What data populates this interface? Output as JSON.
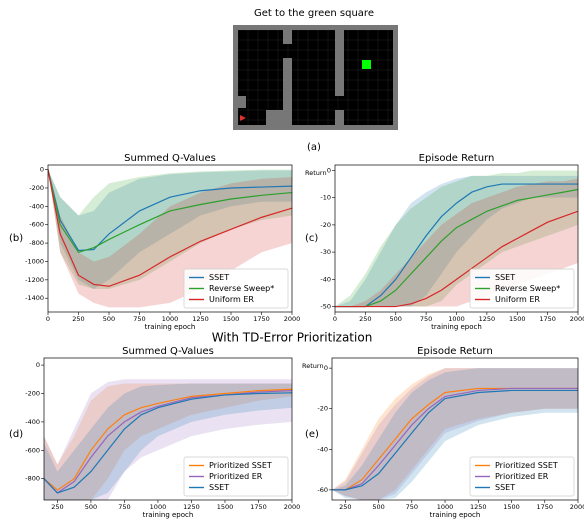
{
  "figure": {
    "title": "Get to the green square",
    "section_title": "With TD-Error Prioritization",
    "panel_labels": [
      "(a)",
      "(b)",
      "(c)",
      "(d)",
      "(e)"
    ]
  },
  "chart_data": [
    {
      "type": "line",
      "title": "Summed Q-Values",
      "x_label": "training epoch",
      "legend": "lower right",
      "x": [
        0,
        100,
        250,
        375,
        500,
        750,
        1000,
        1250,
        1500,
        1750,
        2000
      ],
      "xlim": [
        0,
        2000
      ],
      "xticks": [
        0,
        250,
        500,
        750,
        1000,
        1250,
        1500,
        1750,
        2000
      ],
      "ylim": [
        -1550,
        50
      ],
      "yticks": [
        0,
        -200,
        -400,
        -600,
        -800,
        -1000,
        -1200,
        -1400
      ],
      "series": [
        {
          "name": "SSET",
          "color": "#1f77b4",
          "values": [
            0,
            -550,
            -880,
            -870,
            -700,
            -450,
            -300,
            -230,
            -200,
            -190,
            -180
          ],
          "upper": [
            0,
            -300,
            -500,
            -450,
            -250,
            -100,
            -50,
            -30,
            -20,
            -10,
            -10
          ],
          "lower": [
            0,
            -800,
            -1200,
            -1300,
            -1200,
            -900,
            -700,
            -500,
            -400,
            -350,
            -350
          ]
        },
        {
          "name": "Reverse Sweep*",
          "color": "#2ca02c",
          "values": [
            0,
            -600,
            -900,
            -850,
            -760,
            -600,
            -450,
            -380,
            -320,
            -280,
            -250
          ],
          "upper": [
            0,
            -300,
            -500,
            -300,
            -150,
            -80,
            -40,
            -20,
            -10,
            0,
            0
          ],
          "lower": [
            0,
            -900,
            -1250,
            -1300,
            -1300,
            -1200,
            -1000,
            -800,
            -650,
            -550,
            -500
          ]
        },
        {
          "name": "Uniform ER",
          "color": "#d62728",
          "values": [
            0,
            -700,
            -1150,
            -1250,
            -1270,
            -1150,
            -950,
            -780,
            -650,
            -520,
            -420
          ],
          "upper": [
            0,
            -500,
            -900,
            -1000,
            -950,
            -700,
            -400,
            -250,
            -150,
            -100,
            -80
          ],
          "lower": [
            0,
            -900,
            -1350,
            -1450,
            -1500,
            -1500,
            -1450,
            -1300,
            -1100,
            -900,
            -800
          ]
        }
      ]
    },
    {
      "type": "line",
      "title": "Episode Return",
      "x_label": "training epoch",
      "y_label": "Return",
      "legend": "lower right",
      "x": [
        0,
        125,
        250,
        375,
        500,
        625,
        750,
        875,
        1000,
        1125,
        1250,
        1375,
        1500,
        1625,
        1750,
        1875,
        2000
      ],
      "xlim": [
        0,
        2000
      ],
      "xticks": [
        0,
        250,
        500,
        750,
        1000,
        1250,
        1500,
        1750,
        2000
      ],
      "ylim": [
        -52,
        2
      ],
      "yticks": [
        0,
        -10,
        -20,
        -30,
        -40,
        -50
      ],
      "series": [
        {
          "name": "SSET",
          "color": "#1f77b4",
          "values": [
            -50,
            -50,
            -50,
            -46,
            -40,
            -32,
            -24,
            -17,
            -12,
            -8,
            -6,
            -5,
            -5,
            -5,
            -5,
            -5,
            -5
          ],
          "upper": [
            -50,
            -48,
            -40,
            -30,
            -20,
            -12,
            -8,
            -5,
            -3,
            -2,
            -2,
            -2,
            -2,
            -2,
            -2,
            -2,
            -2
          ],
          "lower": [
            -50,
            -50,
            -50,
            -50,
            -50,
            -50,
            -46,
            -38,
            -30,
            -24,
            -18,
            -14,
            -12,
            -10,
            -10,
            -10,
            -10
          ]
        },
        {
          "name": "Reverse Sweep*",
          "color": "#2ca02c",
          "values": [
            -50,
            -50,
            -50,
            -48,
            -44,
            -38,
            -32,
            -26,
            -21,
            -18,
            -15,
            -13,
            -11,
            -10,
            -9,
            -8,
            -7
          ],
          "upper": [
            -50,
            -46,
            -38,
            -28,
            -20,
            -14,
            -10,
            -6,
            -4,
            -2,
            -2,
            -1,
            -1,
            0,
            0,
            0,
            0
          ],
          "lower": [
            -50,
            -50,
            -50,
            -50,
            -50,
            -50,
            -50,
            -48,
            -42,
            -38,
            -34,
            -30,
            -28,
            -26,
            -24,
            -22,
            -20
          ]
        },
        {
          "name": "Uniform ER",
          "color": "#d62728",
          "values": [
            -50,
            -50,
            -50,
            -50,
            -50,
            -49,
            -47,
            -44,
            -40,
            -36,
            -32,
            -28,
            -25,
            -22,
            -19,
            -17,
            -15
          ],
          "upper": [
            -50,
            -50,
            -48,
            -44,
            -38,
            -32,
            -26,
            -20,
            -16,
            -12,
            -10,
            -8,
            -6,
            -5,
            -4,
            -4,
            -3
          ],
          "lower": [
            -50,
            -50,
            -50,
            -50,
            -50,
            -50,
            -50,
            -50,
            -50,
            -48,
            -46,
            -44,
            -42,
            -40,
            -38,
            -36,
            -34
          ]
        }
      ]
    },
    {
      "type": "line",
      "title": "Summed Q-Values",
      "x_label": "training epoch",
      "legend": "lower right",
      "x": [
        150,
        250,
        375,
        500,
        625,
        750,
        875,
        1000,
        1250,
        1500,
        1750,
        2000
      ],
      "xlim": [
        150,
        2000
      ],
      "xticks": [
        250,
        500,
        750,
        1000,
        1250,
        1500,
        1750,
        2000
      ],
      "ylim": [
        -950,
        50
      ],
      "yticks": [
        0,
        -200,
        -400,
        -600,
        -800
      ],
      "series": [
        {
          "name": "Prioritized SSET",
          "color": "#ff7f0e",
          "values": [
            -800,
            -880,
            -800,
            -600,
            -450,
            -350,
            -300,
            -270,
            -220,
            -200,
            -180,
            -170
          ],
          "upper": [
            -500,
            -700,
            -500,
            -250,
            -150,
            -130,
            -130,
            -130,
            -130,
            -130,
            -130,
            -130
          ],
          "lower": [
            -950,
            -950,
            -950,
            -950,
            -800,
            -600,
            -500,
            -450,
            -350,
            -300,
            -250,
            -220
          ]
        },
        {
          "name": "Prioritized ER",
          "color": "#9467bd",
          "values": [
            -800,
            -900,
            -820,
            -650,
            -500,
            -400,
            -330,
            -290,
            -230,
            -210,
            -190,
            -180
          ],
          "upper": [
            -500,
            -700,
            -450,
            -200,
            -120,
            -100,
            -100,
            -100,
            -100,
            -100,
            -100,
            -100
          ],
          "lower": [
            -950,
            -950,
            -950,
            -950,
            -950,
            -750,
            -650,
            -600,
            -500,
            -450,
            -420,
            -400
          ]
        },
        {
          "name": "SSET",
          "color": "#1f77b4",
          "values": [
            -800,
            -900,
            -860,
            -750,
            -600,
            -450,
            -350,
            -300,
            -240,
            -210,
            -200,
            -195
          ],
          "upper": [
            -550,
            -750,
            -600,
            -450,
            -300,
            -200,
            -150,
            -140,
            -130,
            -130,
            -130,
            -130
          ],
          "lower": [
            -950,
            -950,
            -950,
            -950,
            -900,
            -750,
            -600,
            -500,
            -400,
            -350,
            -320,
            -300
          ]
        }
      ]
    },
    {
      "type": "line",
      "title": "Episode Return",
      "x_label": "training epoch",
      "y_label": "Return",
      "legend": "lower right",
      "x": [
        150,
        250,
        375,
        500,
        625,
        750,
        875,
        1000,
        1250,
        1500,
        1750,
        2000
      ],
      "xlim": [
        150,
        2000
      ],
      "xticks": [
        250,
        500,
        750,
        1000,
        1250,
        1500,
        1750,
        2000
      ],
      "ylim": [
        -65,
        5
      ],
      "yticks": [
        0,
        -20,
        -40,
        -60
      ],
      "series": [
        {
          "name": "Prioritized SSET",
          "color": "#ff7f0e",
          "values": [
            -60,
            -60,
            -55,
            -45,
            -35,
            -25,
            -18,
            -12,
            -10,
            -10,
            -10,
            -10
          ],
          "upper": [
            -60,
            -55,
            -40,
            -25,
            -15,
            -8,
            -3,
            0,
            0,
            0,
            0,
            0
          ],
          "lower": [
            -60,
            -63,
            -65,
            -65,
            -60,
            -50,
            -40,
            -30,
            -25,
            -22,
            -20,
            -20
          ]
        },
        {
          "name": "Prioritized ER",
          "color": "#9467bd",
          "values": [
            -60,
            -60,
            -57,
            -48,
            -38,
            -28,
            -20,
            -14,
            -11,
            -10,
            -10,
            -10
          ],
          "upper": [
            -60,
            -56,
            -42,
            -28,
            -18,
            -10,
            -4,
            0,
            0,
            0,
            0,
            0
          ],
          "lower": [
            -60,
            -63,
            -65,
            -65,
            -62,
            -52,
            -42,
            -32,
            -26,
            -22,
            -20,
            -20
          ]
        },
        {
          "name": "SSET",
          "color": "#1f77b4",
          "values": [
            -60,
            -60,
            -58,
            -52,
            -42,
            -32,
            -22,
            -15,
            -12,
            -11,
            -11,
            -11
          ],
          "upper": [
            -60,
            -58,
            -48,
            -35,
            -22,
            -12,
            -6,
            -2,
            0,
            0,
            0,
            0
          ],
          "lower": [
            -60,
            -64,
            -65,
            -65,
            -64,
            -56,
            -46,
            -36,
            -28,
            -24,
            -22,
            -22
          ]
        }
      ]
    }
  ]
}
